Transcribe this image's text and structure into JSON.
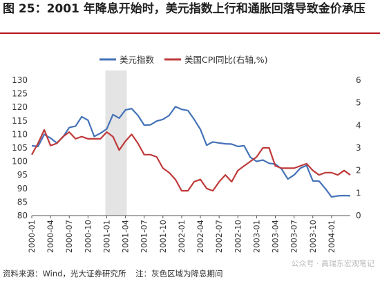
{
  "title": "图 25：2001 年降息开始时，美元指数上行和通胀回落导致金价承压",
  "footer": {
    "source": "资料来源：Wind，光大证券研究所",
    "note": "注：灰色区域为降息期间"
  },
  "watermark": "公众号 · 高瑞东宏观笔记",
  "colors": {
    "usd": "#4472b8",
    "cpi": "#bf3a3a",
    "shade": "#e4e4e4",
    "accent": "#b5121b"
  },
  "chart_data": {
    "type": "line",
    "x_labels": [
      "2000-01",
      "2000-04",
      "2000-07",
      "2000-10",
      "2001-01",
      "2001-04",
      "2001-07",
      "2001-10",
      "2002-01",
      "2002-04",
      "2002-07",
      "2002-10",
      "2003-01",
      "2003-04",
      "2003-07",
      "2003-10",
      "2004-01"
    ],
    "shaded_range": [
      "2001-01",
      "2001-04"
    ],
    "left_axis": {
      "min": 80,
      "max": 130,
      "ticks": [
        80,
        85,
        90,
        95,
        100,
        105,
        110,
        115,
        120,
        125,
        130
      ]
    },
    "right_axis": {
      "min": 0,
      "max": 6,
      "ticks": [
        0,
        1,
        2,
        3,
        4,
        5,
        6
      ]
    },
    "legend_position": "top",
    "series": [
      {
        "name": "美元指数",
        "axis": "left",
        "values": [
          105.8,
          105.5,
          110.0,
          108.6,
          106.8,
          109.0,
          112.5,
          113.0,
          116.5,
          115.2,
          109.2,
          110.4,
          112.0,
          117.3,
          116.0,
          119.0,
          119.5,
          117.0,
          113.4,
          113.5,
          114.9,
          115.5,
          117.0,
          120.2,
          119.2,
          118.8,
          115.5,
          111.8,
          106.0,
          107.2,
          106.8,
          106.5,
          106.4,
          105.5,
          105.8,
          101.5,
          100.0,
          100.5,
          99.3,
          99.0,
          97.2,
          93.5,
          95.0,
          97.5,
          98.5,
          92.8,
          92.7,
          90.0,
          86.9,
          87.3,
          87.4,
          87.3
        ]
      },
      {
        "name": "美国CPI同比(右轴,%)",
        "axis": "right",
        "values": [
          2.7,
          3.2,
          3.8,
          3.1,
          3.2,
          3.5,
          3.7,
          3.4,
          3.5,
          3.4,
          3.4,
          3.4,
          3.7,
          3.5,
          2.9,
          3.3,
          3.6,
          3.2,
          2.7,
          2.7,
          2.6,
          2.1,
          1.9,
          1.6,
          1.1,
          1.1,
          1.5,
          1.6,
          1.2,
          1.1,
          1.5,
          1.8,
          1.5,
          2.0,
          2.2,
          2.4,
          2.6,
          3.0,
          3.0,
          2.2,
          2.1,
          2.1,
          2.1,
          2.2,
          2.3,
          2.0,
          1.8,
          1.9,
          1.9,
          1.8,
          2.0,
          1.8
        ]
      }
    ]
  }
}
